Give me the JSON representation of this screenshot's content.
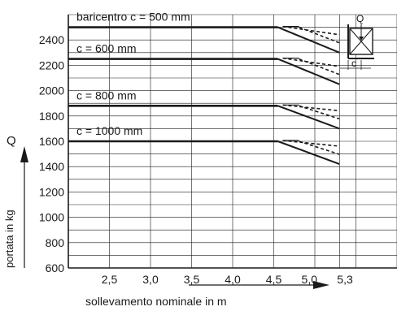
{
  "chart_data": {
    "type": "line",
    "ylabel": "portata in kg",
    "ysymbol": "Q",
    "xlabel": "sollevamento nominale in m",
    "y_ticks": [
      "600",
      "800",
      "1000",
      "1200",
      "1400",
      "1600",
      "1800",
      "2000",
      "2200",
      "2400"
    ],
    "x_ticks": [
      "2,5",
      "3,0",
      "3,5",
      "4,0",
      "4,5",
      "5,0",
      "5,3"
    ],
    "ylim": [
      600,
      2600
    ],
    "xlim": [
      2.0,
      6.0
    ],
    "grid": true,
    "series": [
      {
        "name": "baricentro  c = 500 mm",
        "capacity": 2500,
        "x_end": 4.55,
        "falloff": [
          [
            4.55,
            2500
          ],
          [
            5.3,
            2300
          ]
        ]
      },
      {
        "name": "c = 600 mm",
        "capacity": 2250,
        "x_end": 4.55,
        "falloff": [
          [
            4.55,
            2250
          ],
          [
            5.3,
            2050
          ]
        ]
      },
      {
        "name": "c = 800 mm",
        "capacity": 1880,
        "x_end": 4.55,
        "falloff": [
          [
            4.55,
            1880
          ],
          [
            5.3,
            1700
          ]
        ]
      },
      {
        "name": "c = 1000 mm",
        "capacity": 1600,
        "x_end": 4.55,
        "falloff": [
          [
            4.55,
            1600
          ],
          [
            5.3,
            1420
          ]
        ]
      }
    ],
    "inset": {
      "symbol_q": "Q",
      "symbol_c": "c"
    }
  }
}
